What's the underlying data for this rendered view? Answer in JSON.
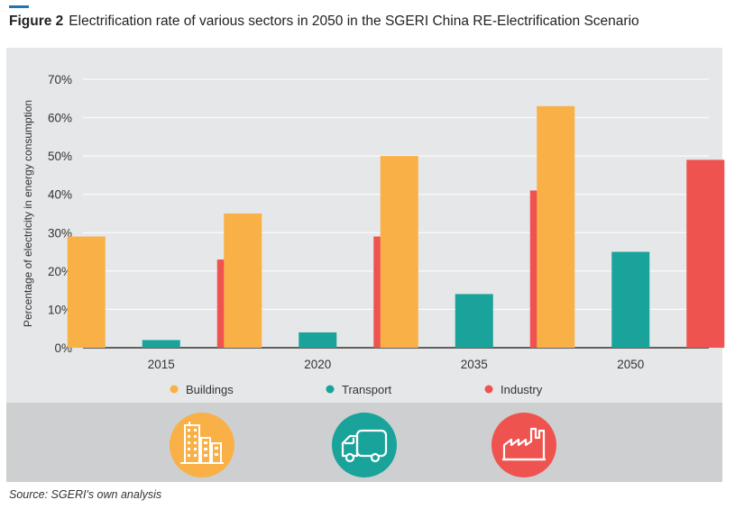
{
  "figure": {
    "label": "Figure 2",
    "title": "Electrification rate of various sectors in 2050 in the SGERI China RE-Electrification Scenario",
    "accent_color": "#1a78b8"
  },
  "source": "Source: SGERI's own analysis",
  "chart_data": {
    "type": "bar",
    "title": "Electrification rate of various sectors in 2050 in the SGERI China RE-Electrification Scenario",
    "xlabel": "",
    "ylabel": "Percentage of electricity in energy consumption",
    "ylim": [
      0,
      70
    ],
    "yticks": [
      0,
      10,
      20,
      30,
      40,
      50,
      60,
      70
    ],
    "ytick_labels": [
      "0%",
      "10%",
      "20%",
      "30%",
      "40%",
      "50%",
      "60%",
      "70%"
    ],
    "grid": true,
    "legend_position": "bottom",
    "categories": [
      "2015",
      "2020",
      "2035",
      "2050"
    ],
    "series": [
      {
        "name": "Buildings",
        "color": "#f9b046",
        "values": [
          29,
          35,
          50,
          63
        ]
      },
      {
        "name": "Transport",
        "color": "#1aa39a",
        "values": [
          2,
          4,
          14,
          25
        ]
      },
      {
        "name": "Industry",
        "color": "#ef5350",
        "values": [
          23,
          29,
          41,
          49
        ]
      }
    ]
  },
  "icons": [
    {
      "name": "buildings-icon",
      "color": "#f9b046"
    },
    {
      "name": "truck-icon",
      "color": "#1aa39a"
    },
    {
      "name": "factory-icon",
      "color": "#ef5350"
    }
  ]
}
